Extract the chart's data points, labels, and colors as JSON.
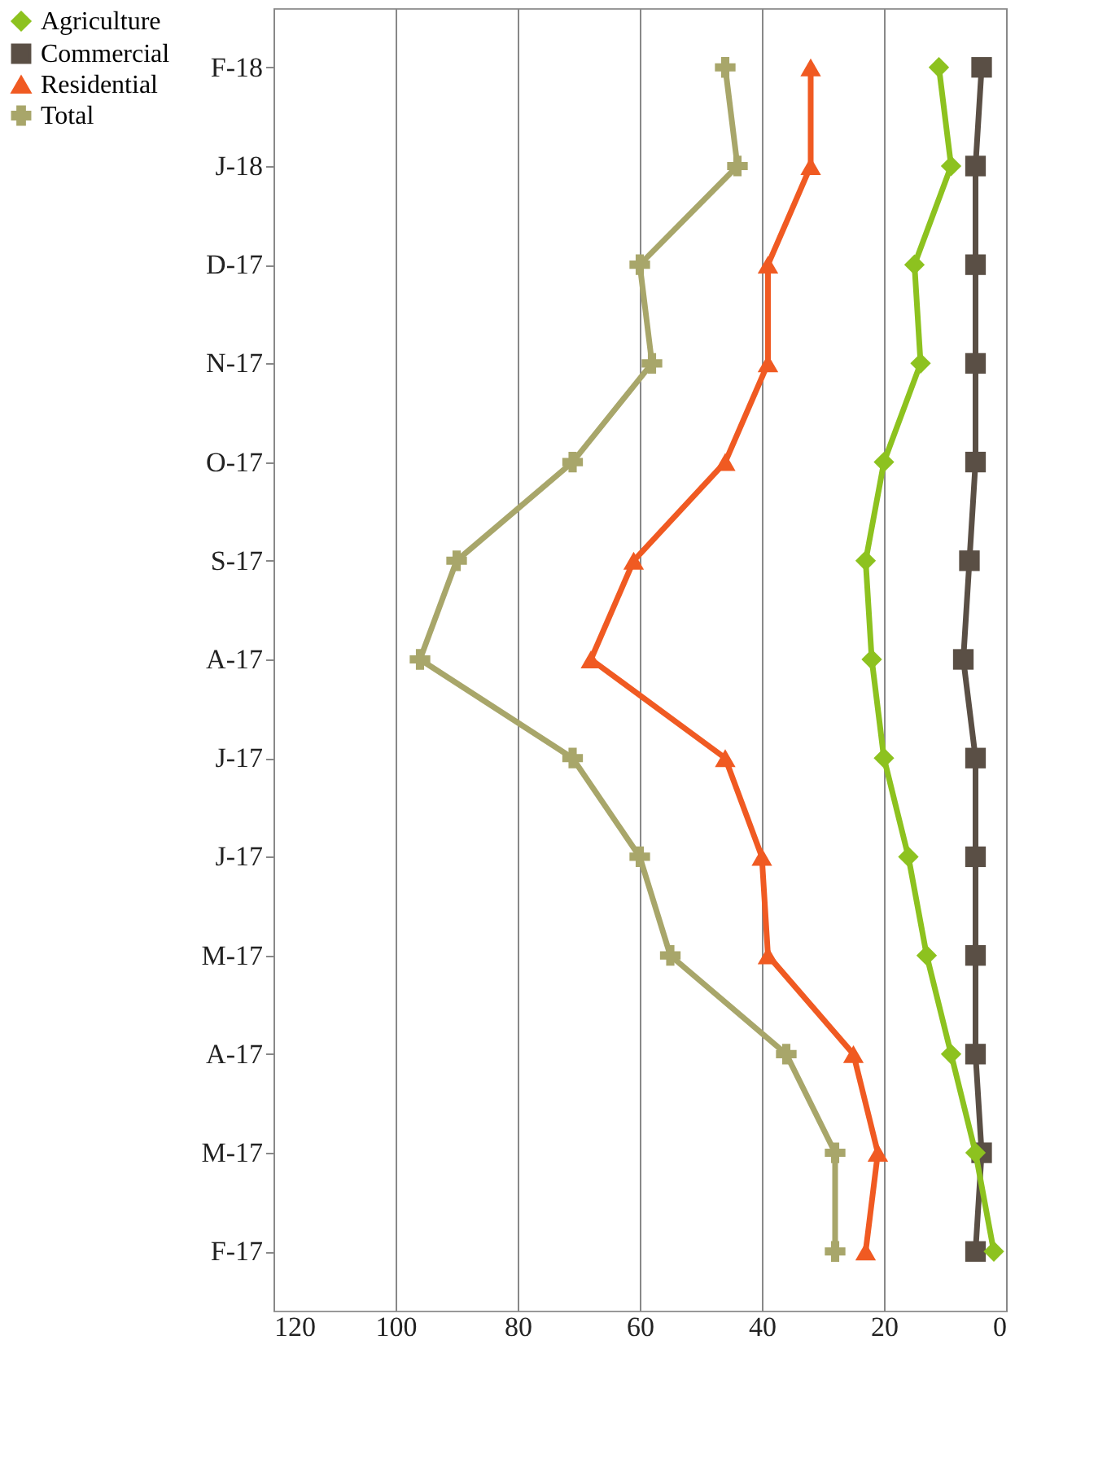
{
  "chart_data": {
    "type": "line",
    "orientation": "horizontal",
    "categories": [
      "F-18",
      "J-18",
      "D-17",
      "N-17",
      "O-17",
      "S-17",
      "A-17",
      "J-17",
      "J-17",
      "M-17",
      "A-17",
      "M-17",
      "F-17"
    ],
    "series": [
      {
        "name": "Agriculture",
        "color": "#8dc21f",
        "marker": "diamond",
        "values": [
          11,
          9,
          15,
          14,
          20,
          23,
          22,
          20,
          16,
          13,
          9,
          5,
          2
        ]
      },
      {
        "name": "Commercial",
        "color": "#5a4f45",
        "marker": "square",
        "values": [
          4,
          5,
          5,
          5,
          5,
          6,
          7,
          5,
          5,
          5,
          5,
          4,
          5
        ]
      },
      {
        "name": "Residential",
        "color": "#f05a22",
        "marker": "triangle",
        "values": [
          32,
          32,
          39,
          39,
          46,
          61,
          68,
          46,
          40,
          39,
          25,
          21,
          23
        ]
      },
      {
        "name": "Total",
        "color": "#a8a66a",
        "marker": "cross",
        "values": [
          46,
          44,
          60,
          58,
          71,
          90,
          96,
          71,
          60,
          55,
          36,
          28,
          28
        ]
      }
    ],
    "xlim": [
      120,
      0
    ],
    "xticks": [
      0,
      20,
      40,
      60,
      80,
      100,
      120
    ],
    "grid": "x",
    "legend": "left",
    "line_style": "solid"
  }
}
